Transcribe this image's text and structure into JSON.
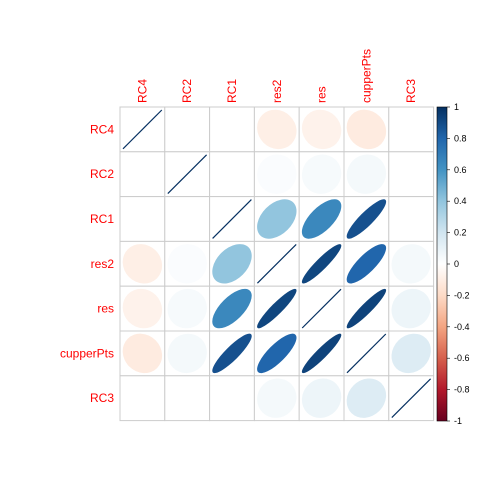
{
  "chart_data": {
    "type": "heatmap",
    "method": "ellipse",
    "layout": "full",
    "variables": [
      "RC4",
      "RC2",
      "RC1",
      "res2",
      "res",
      "cupperPts",
      "RC3"
    ],
    "label_color": "#ff0000",
    "matrix": [
      [
        1.0,
        0.0,
        0.0,
        -0.09,
        -0.07,
        -0.11,
        0.0
      ],
      [
        0.0,
        1.0,
        0.0,
        0.02,
        0.04,
        0.05,
        0.0
      ],
      [
        0.0,
        0.0,
        1.0,
        0.4,
        0.65,
        0.88,
        0.0
      ],
      [
        -0.09,
        0.02,
        0.4,
        1.0,
        0.92,
        0.8,
        0.05
      ],
      [
        -0.07,
        0.04,
        0.65,
        0.92,
        1.0,
        0.93,
        0.08
      ],
      [
        -0.11,
        0.05,
        0.88,
        0.8,
        0.93,
        1.0,
        0.15
      ],
      [
        0.0,
        0.0,
        0.0,
        0.05,
        0.08,
        0.15,
        1.0
      ]
    ],
    "colorbar": {
      "min": -1,
      "max": 1,
      "ticks": [
        "1",
        "0.8",
        "0.6",
        "0.4",
        "0.2",
        "0",
        "-0.2",
        "-0.4",
        "-0.6",
        "-0.8",
        "-1"
      ],
      "colors": [
        "#67001F",
        "#B2182B",
        "#D6604D",
        "#F4A582",
        "#FDDBC7",
        "#FFFFFF",
        "#D1E5F0",
        "#92C5DE",
        "#4393C3",
        "#2166AC",
        "#053061"
      ]
    },
    "grid": true,
    "legend": "right"
  }
}
